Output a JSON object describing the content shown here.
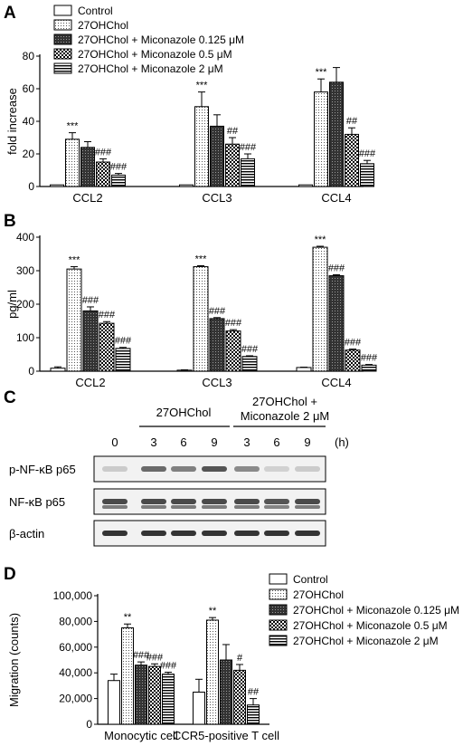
{
  "panel_letters": {
    "a": "A",
    "b": "B",
    "c": "C",
    "d": "D"
  },
  "chart_data": [
    {
      "panel": "A",
      "type": "bar",
      "ylabel": "fold increase",
      "ylim": [
        0,
        80
      ],
      "yticks": [
        0,
        20,
        40,
        60,
        80
      ],
      "categories": [
        "CCL2",
        "CCL3",
        "CCL4"
      ],
      "legend": {
        "placement": "top-left"
      },
      "series": [
        {
          "name": "Control",
          "pattern": "empty",
          "values": [
            1,
            1,
            1
          ],
          "errors": [
            0,
            0,
            0
          ],
          "marks": [
            "",
            "",
            ""
          ]
        },
        {
          "name": "27OHChol",
          "pattern": "dots",
          "values": [
            29,
            49,
            58
          ],
          "errors": [
            4,
            9,
            8
          ],
          "marks": [
            "***",
            "***",
            "***"
          ]
        },
        {
          "name": "27OHChol + Miconazole 0.125 μM",
          "pattern": "dense",
          "values": [
            24,
            37,
            64
          ],
          "errors": [
            3.5,
            7,
            9
          ],
          "marks": [
            "",
            "",
            ""
          ]
        },
        {
          "name": "27OHChol + Miconazole 0.5 μM",
          "pattern": "checker",
          "values": [
            15,
            26,
            32
          ],
          "errors": [
            2,
            4,
            4
          ],
          "marks": [
            "###",
            "##",
            "##"
          ]
        },
        {
          "name": "27OHChol + Miconazole 2 μM",
          "pattern": "hstripes",
          "values": [
            7,
            17,
            14
          ],
          "errors": [
            1,
            3,
            2
          ],
          "marks": [
            "###",
            "###",
            "###"
          ]
        }
      ]
    },
    {
      "panel": "B",
      "type": "bar",
      "ylabel": "pg/ml",
      "ylim": [
        0,
        400
      ],
      "yticks": [
        0,
        100,
        200,
        300,
        400
      ],
      "categories": [
        "CCL2",
        "CCL3",
        "CCL4"
      ],
      "series": [
        {
          "name": "Control",
          "pattern": "empty",
          "values": [
            9,
            3,
            11
          ],
          "errors": [
            4,
            1,
            1
          ],
          "marks": [
            "",
            "",
            ""
          ]
        },
        {
          "name": "27OHChol",
          "pattern": "dots",
          "values": [
            305,
            312,
            370
          ],
          "errors": [
            7,
            3,
            3
          ],
          "marks": [
            "***",
            "***",
            "***"
          ]
        },
        {
          "name": "27OHChol + Miconazole 0.125 μM",
          "pattern": "dense",
          "values": [
            180,
            157,
            285
          ],
          "errors": [
            12,
            3,
            3
          ],
          "marks": [
            "###",
            "###",
            "###"
          ]
        },
        {
          "name": "27OHChol + Miconazole 0.5 μM",
          "pattern": "checker",
          "values": [
            143,
            120,
            63
          ],
          "errors": [
            5,
            4,
            3
          ],
          "marks": [
            "###",
            "###",
            "###"
          ]
        },
        {
          "name": "27OHChol + Miconazole 2 μM",
          "pattern": "hstripes",
          "values": [
            68,
            44,
            18
          ],
          "errors": [
            3,
            2,
            2
          ],
          "marks": [
            "###",
            "###",
            "###"
          ]
        }
      ]
    },
    {
      "panel": "D",
      "type": "bar",
      "ylabel": "Migration (counts)",
      "ylim": [
        0,
        100000
      ],
      "yticks": [
        0,
        20000,
        40000,
        60000,
        80000,
        100000
      ],
      "ytick_labels": [
        "0",
        "20,000",
        "40,000",
        "60,000",
        "80,000",
        "100,000"
      ],
      "categories": [
        "Monocytic cell",
        "CCR5-positive T cell"
      ],
      "legend": {
        "placement": "top-right"
      },
      "series": [
        {
          "name": "Control",
          "pattern": "empty",
          "values": [
            34000,
            25000
          ],
          "errors": [
            5000,
            10000
          ],
          "marks": [
            "",
            ""
          ]
        },
        {
          "name": "27OHChol",
          "pattern": "dots",
          "values": [
            75000,
            81000
          ],
          "errors": [
            3000,
            2000
          ],
          "marks": [
            "**",
            "**"
          ]
        },
        {
          "name": "27OHChol + Miconazole 0.125 μM",
          "pattern": "dense",
          "values": [
            46000,
            50000
          ],
          "errors": [
            2500,
            12000
          ],
          "marks": [
            "###",
            ""
          ]
        },
        {
          "name": "27OHChol + Miconazole 0.5 μM",
          "pattern": "checker",
          "values": [
            45000,
            42000
          ],
          "errors": [
            2000,
            4500
          ],
          "marks": [
            "###",
            "#"
          ]
        },
        {
          "name": "27OHChol + Miconazole 2 μM",
          "pattern": "hstripes",
          "values": [
            39000,
            15000
          ],
          "errors": [
            1500,
            5000
          ],
          "marks": [
            "###",
            "##"
          ]
        }
      ]
    }
  ],
  "blot": {
    "treatment_27": "27OHChol",
    "treatment_mic_line1": "27OHChol +",
    "treatment_mic_line2": "Miconazole 2 μM",
    "time_labels": [
      "0",
      "3",
      "6",
      "9",
      "3",
      "6",
      "9"
    ],
    "time_unit": "(h)",
    "rows": [
      {
        "label": "p-NF-κB p65",
        "intensities": [
          0.15,
          0.6,
          0.5,
          0.7,
          0.45,
          0.12,
          0.15
        ]
      },
      {
        "label": "NF-κB p65",
        "intensities": [
          0.75,
          0.75,
          0.75,
          0.75,
          0.75,
          0.7,
          0.75
        ]
      },
      {
        "label": "β-actin",
        "intensities": [
          0.85,
          0.85,
          0.85,
          0.85,
          0.85,
          0.85,
          0.85
        ]
      }
    ]
  }
}
